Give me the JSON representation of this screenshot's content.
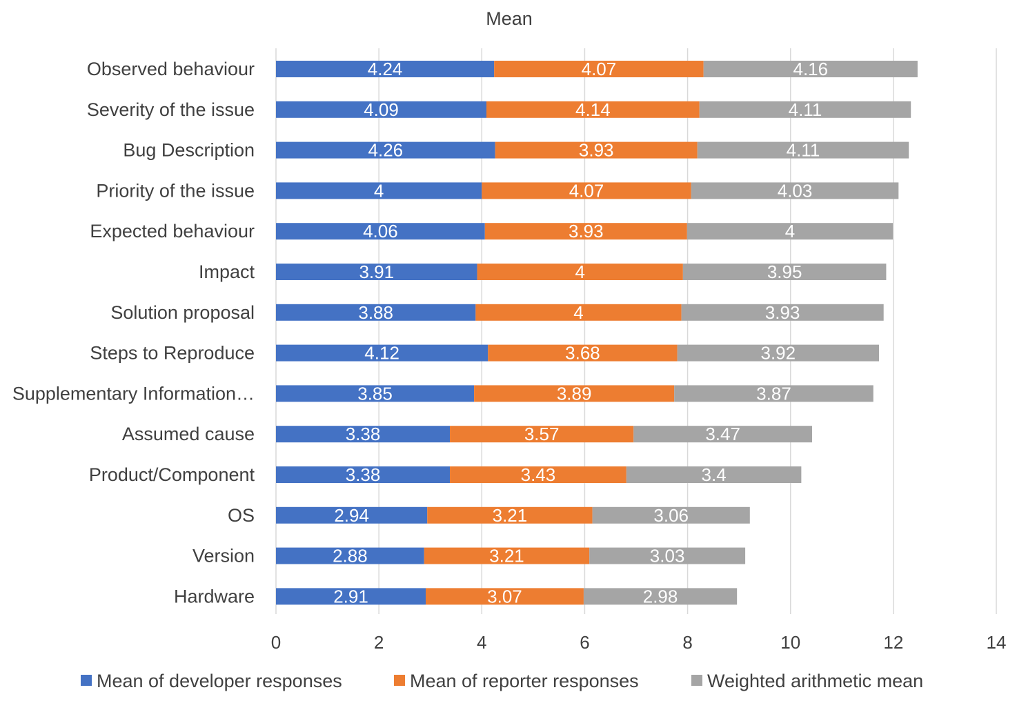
{
  "chart_data": {
    "type": "bar",
    "orientation": "horizontal",
    "stacked": true,
    "title": "Mean",
    "xlabel": "",
    "ylabel": "",
    "xlim": [
      0,
      14
    ],
    "ticks": [
      0,
      2,
      4,
      6,
      8,
      10,
      12,
      14
    ],
    "grid": true,
    "legend_position": "bottom",
    "categories": [
      "Observed behaviour",
      "Severity of the issue",
      "Bug Description",
      "Priority of the issue",
      "Expected behaviour",
      "Impact",
      "Solution proposal",
      "Steps to Reproduce",
      "Supplementary Information…",
      "Assumed cause",
      "Product/Component",
      "OS",
      "Version",
      "Hardware"
    ],
    "series": [
      {
        "name": "Mean of developer responses",
        "color": "#4472c4",
        "values": [
          4.24,
          4.09,
          4.26,
          4,
          4.06,
          3.91,
          3.88,
          4.12,
          3.85,
          3.38,
          3.38,
          2.94,
          2.88,
          2.91
        ]
      },
      {
        "name": "Mean of reporter responses",
        "color": "#ed7d31",
        "values": [
          4.07,
          4.14,
          3.93,
          4.07,
          3.93,
          4,
          4,
          3.68,
          3.89,
          3.57,
          3.43,
          3.21,
          3.21,
          3.07
        ]
      },
      {
        "name": "Weighted arithmetic mean",
        "color": "#a5a5a5",
        "values": [
          4.16,
          4.11,
          4.11,
          4.03,
          4,
          3.95,
          3.93,
          3.92,
          3.87,
          3.47,
          3.4,
          3.06,
          3.03,
          2.98
        ]
      }
    ]
  }
}
